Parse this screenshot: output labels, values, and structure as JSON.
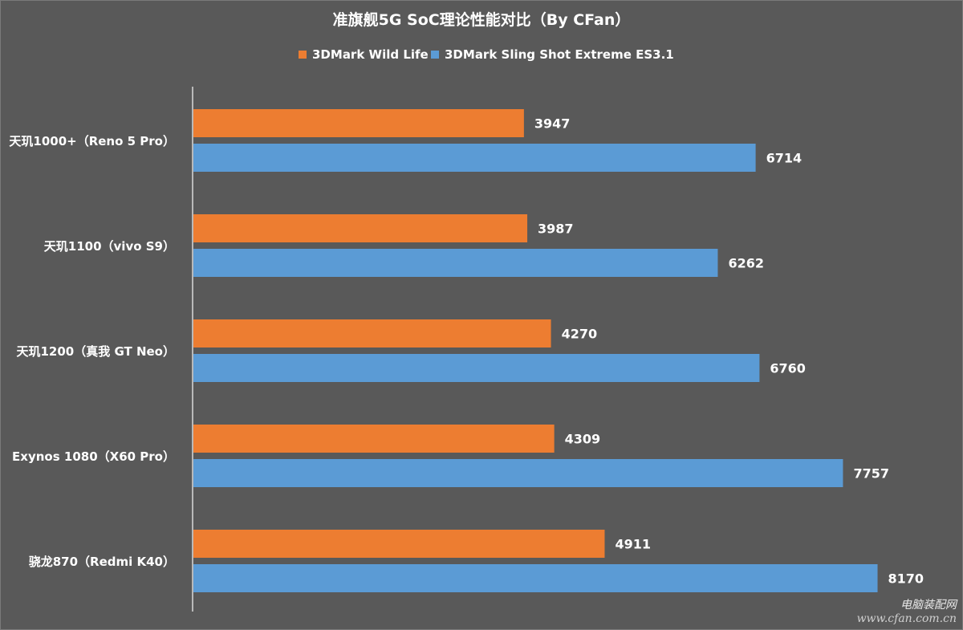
{
  "chart_data": {
    "type": "bar",
    "orientation": "horizontal",
    "title": "准旗舰5G SoC理论性能对比（By CFan）",
    "categories": [
      "天玑1000+（Reno 5 Pro）",
      "天玑1100（vivo S9）",
      "天玑1200（真我 GT Neo）",
      "Exynos 1080（X60 Pro）",
      "骁龙870（Redmi K40）"
    ],
    "series": [
      {
        "name": "3DMark Wild Life",
        "color": "#ed7d31",
        "values": [
          3947,
          3987,
          4270,
          4309,
          4911
        ]
      },
      {
        "name": "3DMark Sling Shot Extreme ES3.1",
        "color": "#5b9bd5",
        "values": [
          6714,
          6262,
          6760,
          7757,
          8170
        ]
      }
    ],
    "xlim": [
      0,
      9000
    ],
    "grid": false,
    "legend_position": "top",
    "data_labels": true
  },
  "watermark": {
    "cn": "电脑装配网",
    "url": "www.cfan.com.cn"
  }
}
